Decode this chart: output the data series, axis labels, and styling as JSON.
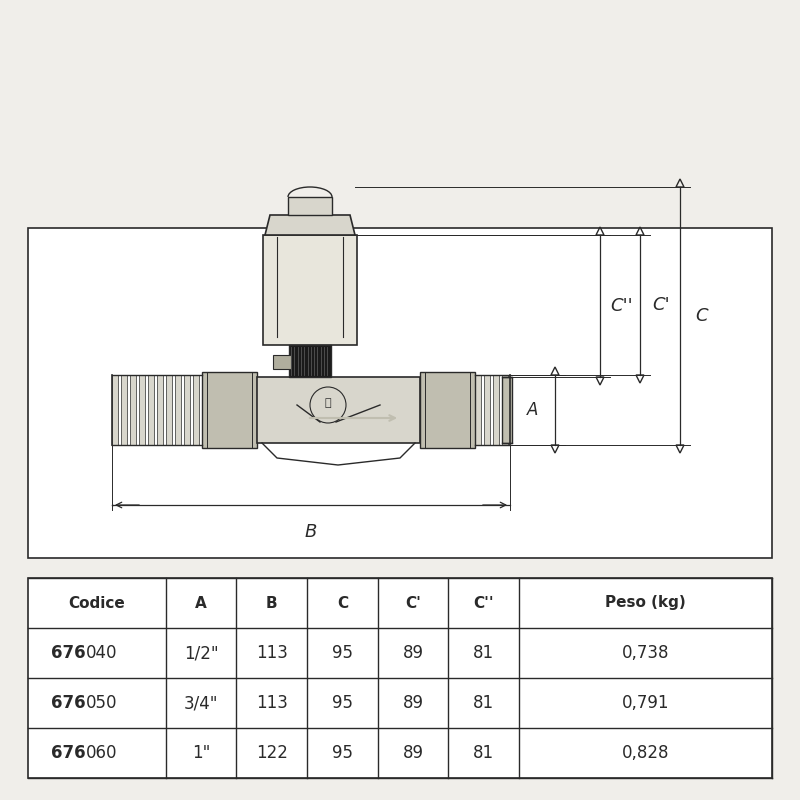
{
  "bg_color": "#f0eeea",
  "line_color": "#2a2a2a",
  "valve_fill": "#d8d6cc",
  "valve_light": "#e8e6dc",
  "valve_dark": "#b0ae9e",
  "valve_black": "#1a1a1a",
  "valve_mid": "#c0beb0",
  "table": {
    "headers": [
      "Codice",
      "A",
      "B",
      "C",
      "C'",
      "C''",
      "Peso (kg)"
    ],
    "rows": [
      [
        "676",
        "040",
        "1/2\"",
        "113",
        "95",
        "89",
        "81",
        "0,738"
      ],
      [
        "676",
        "050",
        "3/4\"",
        "113",
        "95",
        "89",
        "81",
        "0,791"
      ],
      [
        "676",
        "060",
        "1\"",
        "122",
        "95",
        "89",
        "81",
        "0,828"
      ]
    ]
  }
}
